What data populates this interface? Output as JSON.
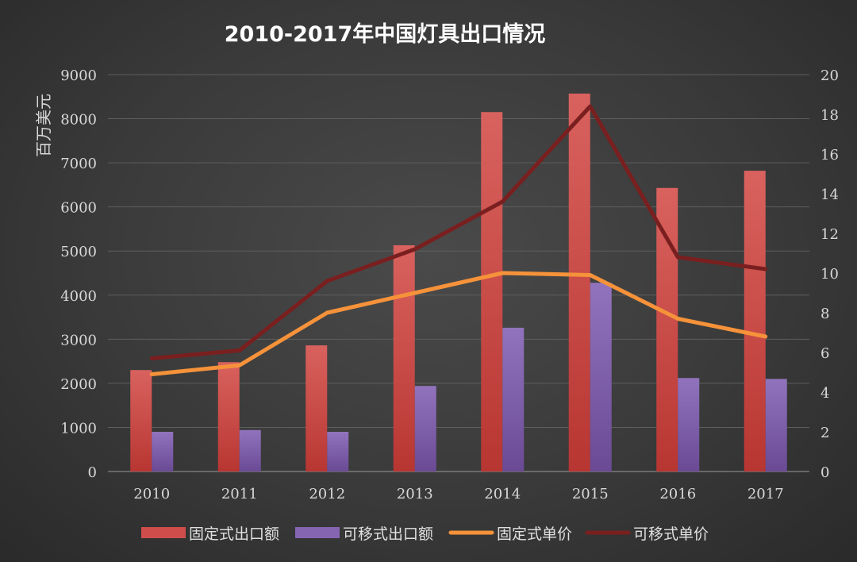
{
  "chart_data": {
    "type": "bar",
    "title": "2010-2017年中国灯具出口情况",
    "ylabel": "百万美元",
    "ylim": [
      0,
      9000
    ],
    "yticks": [
      0,
      1000,
      2000,
      3000,
      4000,
      5000,
      6000,
      7000,
      8000,
      9000
    ],
    "y2lim": [
      0,
      20
    ],
    "y2ticks": [
      0,
      2,
      4,
      6,
      8,
      10,
      12,
      14,
      16,
      18,
      20
    ],
    "categories": [
      "2010",
      "2011",
      "2012",
      "2013",
      "2014",
      "2015",
      "2016",
      "2017"
    ],
    "grid": true,
    "legend_position": "bottom",
    "series": [
      {
        "name": "固定式出口额",
        "type": "bar",
        "axis": "left",
        "color": "#c94a47",
        "values": [
          2300,
          2480,
          2860,
          5130,
          8150,
          8570,
          6430,
          6820
        ]
      },
      {
        "name": "可移式出口额",
        "type": "bar",
        "axis": "left",
        "color": "#7d5ba6",
        "values": [
          900,
          940,
          900,
          1940,
          3260,
          4280,
          2120,
          2100
        ]
      },
      {
        "name": "固定式单价",
        "type": "line",
        "axis": "right",
        "color": "#f5923a",
        "values": [
          4.9,
          5.35,
          8.0,
          9.0,
          10.0,
          9.9,
          7.7,
          6.8
        ]
      },
      {
        "name": "可移式单价",
        "type": "line",
        "axis": "right",
        "color": "#7a1f1f",
        "values": [
          5.7,
          6.1,
          9.6,
          11.2,
          13.6,
          18.4,
          10.8,
          10.2
        ]
      }
    ]
  }
}
